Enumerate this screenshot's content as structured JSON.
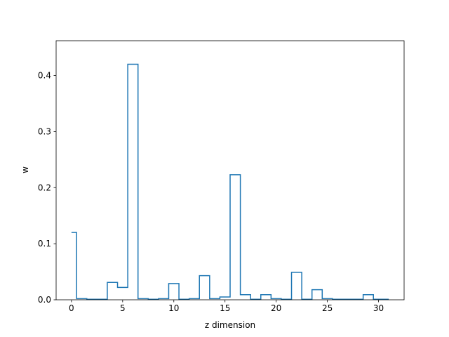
{
  "chart_data": {
    "type": "line",
    "drawstyle": "steps-mid",
    "title": "",
    "xlabel": "z dimension",
    "ylabel": "w",
    "xlim": [
      -1.5,
      32.5
    ],
    "ylim": [
      0,
      0.462
    ],
    "xticks": [
      0,
      5,
      10,
      15,
      20,
      25,
      30
    ],
    "yticks": [
      0.0,
      0.1,
      0.2,
      0.3,
      0.4
    ],
    "ytick_labels": [
      "0.0",
      "0.1",
      "0.2",
      "0.3",
      "0.4"
    ],
    "color": "#1f77b4",
    "grid": false,
    "legend": false,
    "series": [
      {
        "x": [
          0,
          1,
          2,
          3,
          4,
          5,
          6,
          7,
          8,
          9,
          10,
          11,
          12,
          13,
          14,
          15,
          16,
          17,
          18,
          19,
          20,
          21,
          22,
          23,
          24,
          25,
          26,
          27,
          28,
          29,
          30,
          31
        ],
        "values": [
          0.12,
          0.002,
          0.001,
          0.001,
          0.031,
          0.022,
          0.42,
          0.002,
          0.001,
          0.002,
          0.029,
          0.001,
          0.002,
          0.043,
          0.002,
          0.005,
          0.223,
          0.009,
          0.001,
          0.009,
          0.002,
          0.001,
          0.049,
          0.001,
          0.018,
          0.002,
          0.001,
          0.001,
          0.001,
          0.009,
          0.001,
          0.001
        ]
      }
    ]
  }
}
